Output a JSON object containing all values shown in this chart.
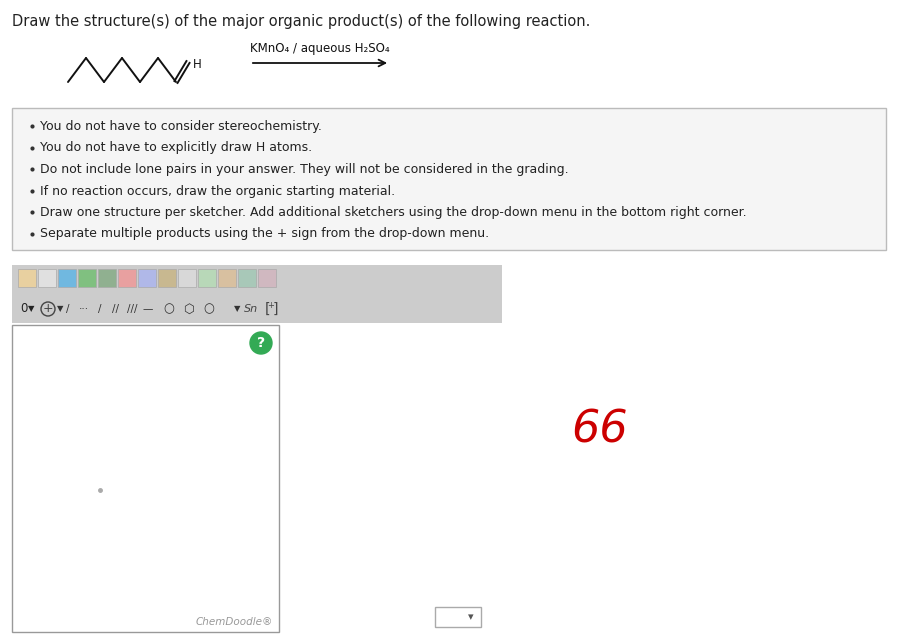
{
  "title_text": "Draw the structure(s) of the major organic product(s) of the following reaction.",
  "title_fontsize": 10.5,
  "title_color": "#222222",
  "background_color": "#ffffff",
  "reaction_label": "KMnO₄ / aqueous H₂SO₄",
  "bullet_points": [
    "You do not have to consider stereochemistry.",
    "You do not have to explicitly draw H atoms.",
    "Do not include lone pairs in your answer. They will not be considered in the grading.",
    "If no reaction occurs, draw the organic starting material.",
    "Draw one structure per sketcher. Add additional sketchers using the drop-down menu in the bottom right corner.",
    "Separate multiple products using the + sign from the drop-down menu."
  ],
  "box_bg": "#f5f5f5",
  "box_border": "#bbbbbb",
  "toolbar_bg": "#d8d8d8",
  "sketcher_bg": "#ffffff",
  "sketcher_border": "#888888",
  "chemdoodle_text": "ChemDoodle®",
  "red_color": "#cc0000",
  "mol_color": "#111111",
  "arrow_color": "#111111"
}
